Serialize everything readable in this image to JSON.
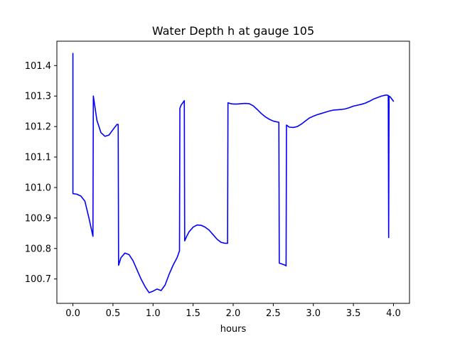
{
  "chart_data": {
    "type": "line",
    "title": "Water Depth h at gauge 105",
    "xlabel": "hours",
    "ylabel": "",
    "xlim": [
      -0.2,
      4.2
    ],
    "ylim": [
      100.62,
      101.48
    ],
    "grid": false,
    "x_ticks": [
      0.0,
      0.5,
      1.0,
      1.5,
      2.0,
      2.5,
      3.0,
      3.5,
      4.0
    ],
    "x_tick_labels": [
      "0.0",
      "0.5",
      "1.0",
      "1.5",
      "2.0",
      "2.5",
      "3.0",
      "3.5",
      "4.0"
    ],
    "y_ticks": [
      100.7,
      100.8,
      100.9,
      101.0,
      101.1,
      101.2,
      101.3,
      101.4
    ],
    "y_tick_labels": [
      "100.7",
      "100.8",
      "100.9",
      "101.0",
      "101.1",
      "101.2",
      "101.3",
      "101.4"
    ],
    "series": [
      {
        "color": "#0000ff",
        "x": [
          0.0,
          0.0,
          0.05,
          0.1,
          0.15,
          0.2,
          0.25,
          0.255,
          0.3,
          0.35,
          0.4,
          0.45,
          0.5,
          0.55,
          0.565,
          0.57,
          0.6,
          0.65,
          0.7,
          0.75,
          0.8,
          0.85,
          0.9,
          0.95,
          1.0,
          1.05,
          1.1,
          1.15,
          1.2,
          1.25,
          1.3,
          1.33,
          1.335,
          1.35,
          1.39,
          1.395,
          1.42,
          1.45,
          1.5,
          1.55,
          1.6,
          1.65,
          1.7,
          1.75,
          1.8,
          1.85,
          1.9,
          1.93,
          1.935,
          1.97,
          2.0,
          2.05,
          2.1,
          2.15,
          2.2,
          2.25,
          2.3,
          2.35,
          2.4,
          2.45,
          2.5,
          2.55,
          2.57,
          2.575,
          2.6,
          2.65,
          2.66,
          2.665,
          2.7,
          2.75,
          2.8,
          2.85,
          2.9,
          2.95,
          3.0,
          3.05,
          3.1,
          3.15,
          3.2,
          3.25,
          3.3,
          3.35,
          3.4,
          3.45,
          3.5,
          3.55,
          3.6,
          3.65,
          3.7,
          3.75,
          3.8,
          3.85,
          3.9,
          3.92,
          3.935,
          3.94,
          3.945,
          3.96,
          3.98,
          4.0
        ],
        "values": [
          101.44,
          100.98,
          100.978,
          100.972,
          100.955,
          100.9,
          100.84,
          101.3,
          101.22,
          101.18,
          101.168,
          101.172,
          101.19,
          101.207,
          101.207,
          100.745,
          100.77,
          100.785,
          100.78,
          100.76,
          100.73,
          100.7,
          100.675,
          100.655,
          100.66,
          100.667,
          100.662,
          100.68,
          100.715,
          100.745,
          100.77,
          100.792,
          101.26,
          101.27,
          101.285,
          100.825,
          100.84,
          100.855,
          100.87,
          100.877,
          100.876,
          100.87,
          100.86,
          100.845,
          100.83,
          100.82,
          100.817,
          100.817,
          101.278,
          101.275,
          101.274,
          101.274,
          101.275,
          101.276,
          101.275,
          101.268,
          101.256,
          101.243,
          101.232,
          101.224,
          101.218,
          101.215,
          101.214,
          100.752,
          100.75,
          100.745,
          100.743,
          101.205,
          101.198,
          101.197,
          101.2,
          101.208,
          101.218,
          101.228,
          101.234,
          101.239,
          101.243,
          101.247,
          101.251,
          101.254,
          101.255,
          101.256,
          101.258,
          101.262,
          101.267,
          101.27,
          101.273,
          101.277,
          101.283,
          101.29,
          101.295,
          101.3,
          101.303,
          101.303,
          101.302,
          100.836,
          101.3,
          101.297,
          101.29,
          101.283
        ]
      }
    ]
  }
}
